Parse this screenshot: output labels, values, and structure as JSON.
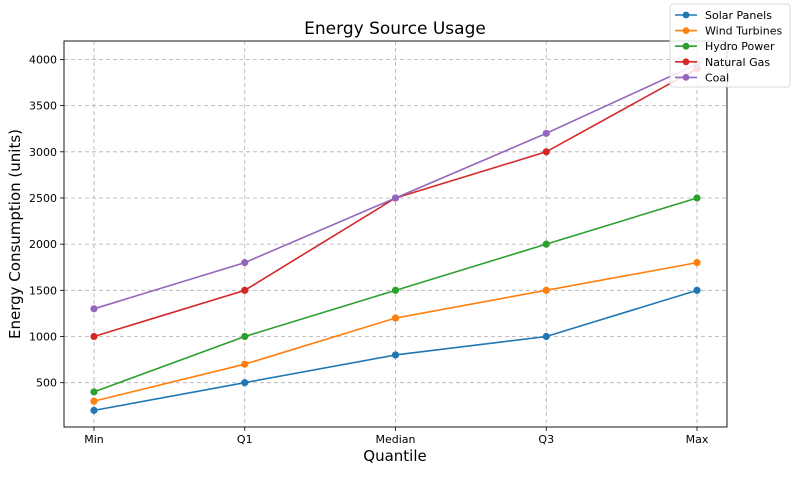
{
  "chart_data": {
    "type": "line",
    "title": "Energy Source Usage",
    "xlabel": "Quantile",
    "ylabel": "Energy Consumption (units)",
    "categories": [
      "Min",
      "Q1",
      "Median",
      "Q3",
      "Max"
    ],
    "ylim": [
      20,
      4200
    ],
    "yticks": [
      500,
      1000,
      1500,
      2000,
      2500,
      3000,
      3500,
      4000
    ],
    "grid": true,
    "legend_position": "top-right",
    "series": [
      {
        "name": "Solar Panels",
        "color": "#1f77b4",
        "values": [
          200,
          500,
          800,
          1000,
          1500
        ]
      },
      {
        "name": "Wind Turbines",
        "color": "#ff7f0e",
        "values": [
          300,
          700,
          1200,
          1500,
          1800
        ]
      },
      {
        "name": "Hydro Power",
        "color": "#2ca02c",
        "values": [
          400,
          1000,
          1500,
          2000,
          2500
        ]
      },
      {
        "name": "Natural Gas",
        "color": "#d62728",
        "values": [
          1000,
          1500,
          2500,
          3000,
          3900
        ]
      },
      {
        "name": "Coal",
        "color": "#9467bd",
        "values": [
          1300,
          1800,
          2500,
          3200,
          3950
        ]
      }
    ]
  }
}
